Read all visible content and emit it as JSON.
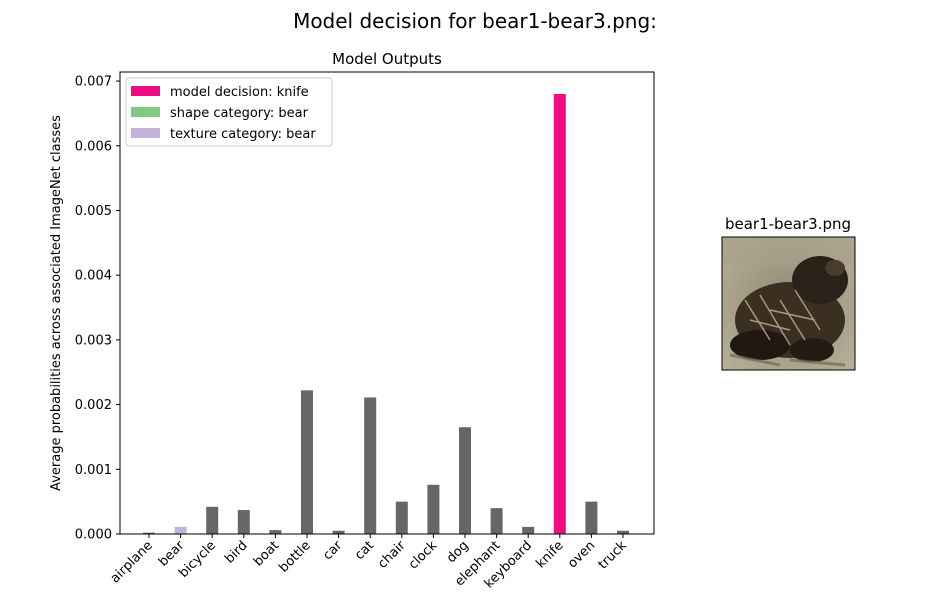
{
  "figure": {
    "suptitle": "Model decision for bear1-bear3.png:"
  },
  "thumbnail": {
    "title": "bear1-bear3.png"
  },
  "chart_data": {
    "type": "bar",
    "title": "Model Outputs",
    "xlabel": "",
    "ylabel": "Average probabilities across associated ImageNet classes",
    "ylim": [
      0,
      0.00714
    ],
    "yticks": [
      0.0,
      0.001,
      0.002,
      0.003,
      0.004,
      0.005,
      0.006,
      0.007
    ],
    "ytick_labels": [
      "0.000",
      "0.001",
      "0.002",
      "0.003",
      "0.004",
      "0.005",
      "0.006",
      "0.007"
    ],
    "grid": false,
    "legend_position": "top-left",
    "categories": [
      "airplane",
      "bear",
      "bicycle",
      "bird",
      "boat",
      "bottle",
      "car",
      "cat",
      "chair",
      "clock",
      "dog",
      "elephant",
      "keyboard",
      "knife",
      "oven",
      "truck"
    ],
    "values": [
      2e-05,
      0.00011,
      0.00042,
      0.00037,
      6e-05,
      0.00222,
      5e-05,
      0.00211,
      0.0005,
      0.00076,
      0.00165,
      0.0004,
      0.00011,
      0.0068,
      0.0005,
      5e-05
    ],
    "bar_colors": [
      "#666666",
      "#c2b1d9",
      "#666666",
      "#666666",
      "#666666",
      "#666666",
      "#666666",
      "#666666",
      "#666666",
      "#666666",
      "#666666",
      "#666666",
      "#666666",
      "#ee0b84",
      "#666666",
      "#666666"
    ],
    "legend": [
      {
        "label": "model decision: knife",
        "color": "#ee0b84"
      },
      {
        "label": "shape category: bear",
        "color": "#80c97f"
      },
      {
        "label": "texture category: bear",
        "color": "#c2b1d9"
      }
    ]
  }
}
